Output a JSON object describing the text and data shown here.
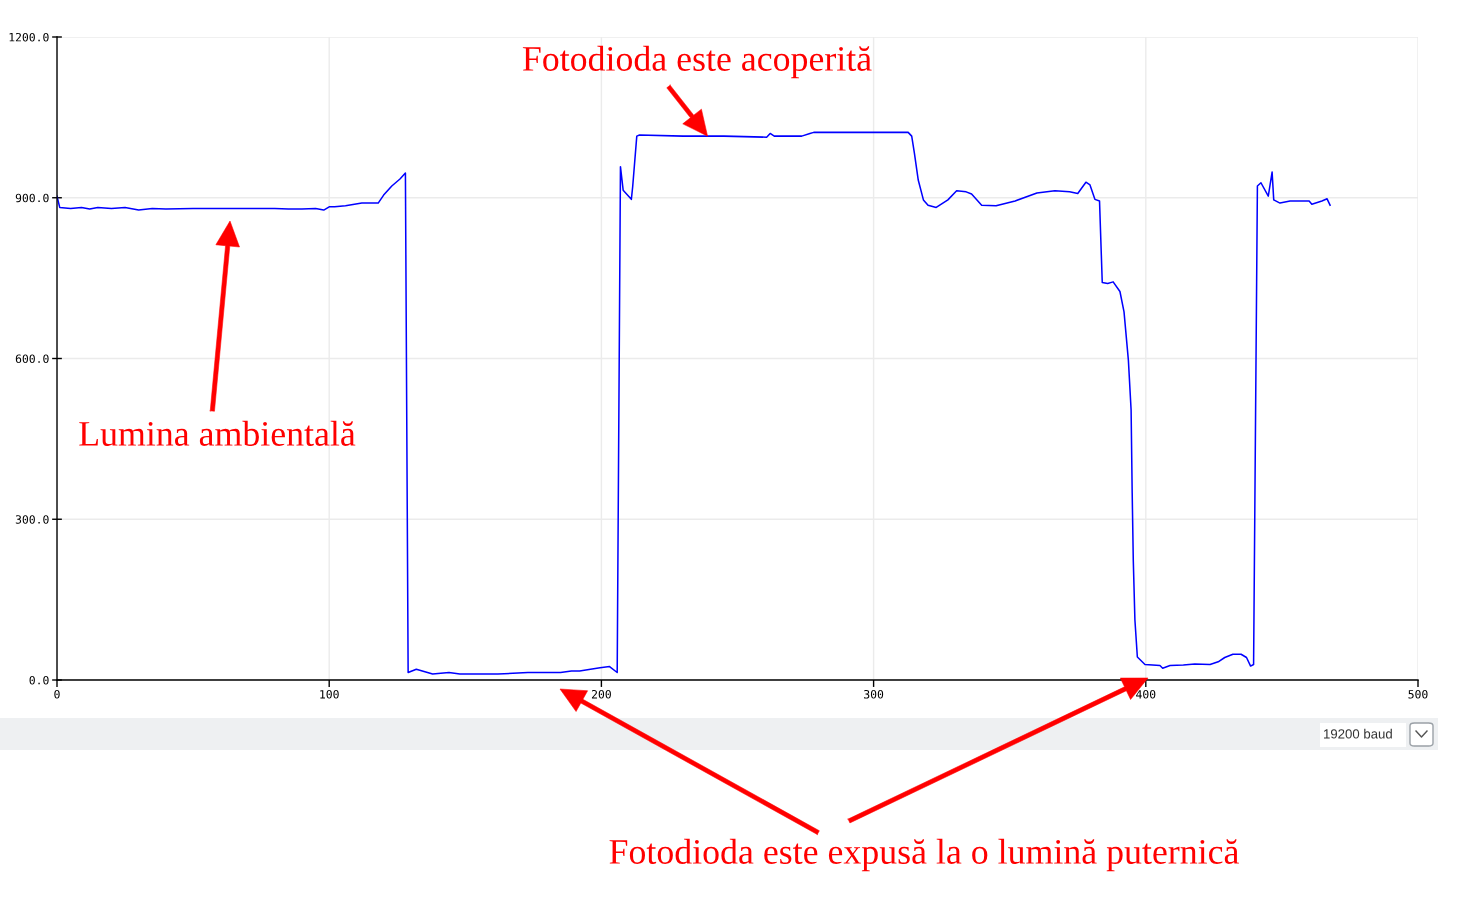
{
  "chart_data": {
    "type": "line",
    "x": [
      0,
      1,
      5,
      9,
      12,
      15,
      20,
      25,
      30,
      35,
      40,
      50,
      60,
      70,
      80,
      85,
      90,
      95,
      98,
      100,
      102,
      106,
      112,
      118,
      120,
      123,
      126,
      128,
      129,
      132,
      138,
      144,
      148,
      162,
      173,
      185,
      189,
      192,
      196,
      199.5,
      203,
      205.8,
      207,
      208,
      211,
      211.5,
      213,
      214,
      230,
      245,
      260.7,
      262,
      263.5,
      273.6,
      276.6,
      278,
      300,
      312.7,
      314,
      315,
      316.4,
      318.3,
      320,
      323,
      327.3,
      330.5,
      334,
      336,
      339.7,
      345,
      352,
      360,
      366.6,
      372,
      375,
      378,
      379.5,
      381.3,
      383,
      384,
      386,
      388,
      390.5,
      392,
      393.6,
      394.6,
      395,
      395.4,
      396,
      396.9,
      399.7,
      405.2,
      406.2,
      408.9,
      413.8,
      418,
      423.6,
      426.6,
      429,
      432,
      435,
      437,
      438.5,
      439.6,
      441,
      442.3,
      445,
      446.4,
      447,
      449.3,
      453,
      460,
      461,
      464.7,
      466.6,
      467.7
    ],
    "series": [
      {
        "color": "#0000ff",
        "values": [
          903,
          882,
          880,
          882,
          879,
          882,
          880,
          882,
          877,
          880,
          879,
          880,
          880,
          880,
          880,
          879,
          879,
          880,
          877,
          883,
          883,
          885,
          890,
          890,
          905,
          922,
          935,
          946,
          14,
          20,
          11,
          14,
          11,
          11,
          14,
          14,
          17,
          17,
          20,
          23,
          25,
          14,
          958,
          914,
          897,
          921,
          1015,
          1017,
          1015,
          1015,
          1013,
          1020,
          1015,
          1015,
          1020,
          1022,
          1022,
          1022,
          1015,
          983,
          933,
          896,
          886,
          882,
          896,
          913,
          911,
          907,
          886,
          885,
          894,
          909,
          913,
          911,
          908,
          929,
          924,
          897,
          894,
          742,
          740,
          743,
          725,
          687,
          597,
          504,
          349,
          224,
          112,
          43,
          29,
          27,
          22,
          27,
          28,
          30,
          29,
          34,
          42,
          48,
          48,
          42,
          26,
          29,
          922,
          928,
          903,
          948,
          896,
          890,
          894,
          894,
          888,
          894,
          898,
          886
        ]
      }
    ],
    "xlim": [
      0,
      500
    ],
    "xticks": [
      0,
      100,
      200,
      300,
      400,
      500
    ],
    "ylim": [
      0,
      1200
    ],
    "yticks": [
      {
        "value": 0,
        "label": "0.0"
      },
      {
        "value": 300,
        "label": "300.0"
      },
      {
        "value": 600,
        "label": "600.0"
      },
      {
        "value": 900,
        "label": "900.0"
      },
      {
        "value": 1200,
        "label": "1200.0"
      }
    ],
    "grid": true,
    "annotations": [
      {
        "text": "Fotodioda este acoperită",
        "x": 239,
        "y": 1015
      },
      "Lumina ambientală",
      "Fotodioda este expusă la o lumină puternică",
      "19200 baud"
    ]
  }
}
